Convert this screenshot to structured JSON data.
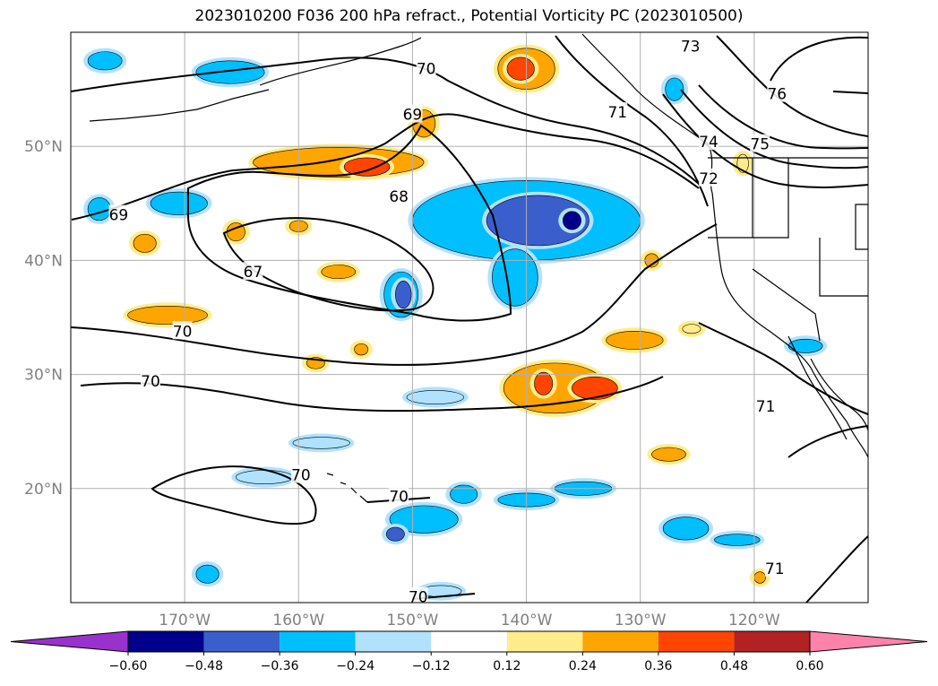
{
  "title": "2023010200 F036 200 hPa refract., Potential Vorticity PC (2023010500)",
  "map": {
    "lon_ticks": [
      {
        "lon": -170,
        "label": "170°W"
      },
      {
        "lon": -160,
        "label": "160°W"
      },
      {
        "lon": -150,
        "label": "150°W"
      },
      {
        "lon": -140,
        "label": "140°W"
      },
      {
        "lon": -130,
        "label": "130°W"
      },
      {
        "lon": -120,
        "label": "120°W"
      }
    ],
    "lat_ticks": [
      {
        "lat": 50,
        "label": "50°N"
      },
      {
        "lat": 40,
        "label": "40°N"
      },
      {
        "lat": 30,
        "label": "30°N"
      },
      {
        "lat": 20,
        "label": "20°N"
      }
    ],
    "contour_labels": [
      {
        "text": "73",
        "lon": -125.6,
        "lat": 58.8
      },
      {
        "text": "76",
        "lon": -118.0,
        "lat": 54.6
      },
      {
        "text": "70",
        "lon": -148.8,
        "lat": 56.8
      },
      {
        "text": "71",
        "lon": -132.0,
        "lat": 53.0
      },
      {
        "text": "69",
        "lon": -150.0,
        "lat": 52.8
      },
      {
        "text": "74",
        "lon": -124.0,
        "lat": 50.4
      },
      {
        "text": "75",
        "lon": -119.5,
        "lat": 50.2
      },
      {
        "text": "72",
        "lon": -124.0,
        "lat": 47.2
      },
      {
        "text": "68",
        "lon": -151.2,
        "lat": 45.6
      },
      {
        "text": "69",
        "lon": -175.8,
        "lat": 44.0
      },
      {
        "text": "67",
        "lon": -164.0,
        "lat": 39.0
      },
      {
        "text": "70",
        "lon": -170.2,
        "lat": 33.8
      },
      {
        "text": "70",
        "lon": -173.0,
        "lat": 29.4
      },
      {
        "text": "71",
        "lon": -119.0,
        "lat": 27.2
      },
      {
        "text": "70",
        "lon": -159.8,
        "lat": 21.2
      },
      {
        "text": "70",
        "lon": -151.2,
        "lat": 19.3
      },
      {
        "text": "71",
        "lon": -118.2,
        "lat": 13.0
      },
      {
        "text": "70",
        "lon": -149.5,
        "lat": 10.5
      }
    ]
  },
  "colorbar": {
    "colors": [
      "#9932cc",
      "#00008b",
      "#3a5fcd",
      "#00bfff",
      "#b0e2ff",
      "#ffffff",
      "#ffec8b",
      "#ffa500",
      "#ff4500",
      "#b22222",
      "#ff82ab"
    ],
    "ticks": [
      "−0.60",
      "−0.48",
      "−0.36",
      "−0.24",
      "−0.12",
      "0.12",
      "0.24",
      "0.36",
      "0.48",
      "0.60"
    ]
  },
  "features": {
    "blue_blobs": [
      {
        "lon": -140.0,
        "lat": 43.5,
        "rx": 10,
        "ry": 3.5,
        "level": 3
      },
      {
        "lon": -139.0,
        "lat": 43.5,
        "rx": 4.5,
        "ry": 2.2,
        "level": 2
      },
      {
        "lon": -136.0,
        "lat": 43.5,
        "rx": 0.8,
        "ry": 0.8,
        "level": 1
      },
      {
        "lon": -141.0,
        "lat": 38.5,
        "rx": 2.0,
        "ry": 2.5,
        "level": 3
      },
      {
        "lon": -151.0,
        "lat": 37.0,
        "rx": 1.5,
        "ry": 2.0,
        "level": 3
      },
      {
        "lon": -150.8,
        "lat": 37.0,
        "rx": 0.7,
        "ry": 1.2,
        "level": 2
      },
      {
        "lon": -170.5,
        "lat": 45.0,
        "rx": 2.5,
        "ry": 1.0,
        "level": 3
      },
      {
        "lon": -177.5,
        "lat": 44.5,
        "rx": 1.0,
        "ry": 1.0,
        "level": 3
      },
      {
        "lon": -166.0,
        "lat": 56.5,
        "rx": 3.0,
        "ry": 1.0,
        "level": 3
      },
      {
        "lon": -149.0,
        "lat": 17.3,
        "rx": 3.0,
        "ry": 1.2,
        "level": 3
      },
      {
        "lon": -151.5,
        "lat": 16.0,
        "rx": 0.8,
        "ry": 0.6,
        "level": 2
      },
      {
        "lon": -135.0,
        "lat": 20.0,
        "rx": 2.5,
        "ry": 0.6,
        "level": 3
      },
      {
        "lon": -140.0,
        "lat": 19.0,
        "rx": 2.5,
        "ry": 0.6,
        "level": 3
      },
      {
        "lon": -145.5,
        "lat": 19.5,
        "rx": 1.2,
        "ry": 0.8,
        "level": 3
      },
      {
        "lon": -126.0,
        "lat": 16.5,
        "rx": 2.0,
        "ry": 1.0,
        "level": 3
      },
      {
        "lon": -121.5,
        "lat": 15.5,
        "rx": 2.0,
        "ry": 0.5,
        "level": 3
      },
      {
        "lon": -158.0,
        "lat": 24.0,
        "rx": 2.5,
        "ry": 0.5,
        "level": 4
      },
      {
        "lon": -163.0,
        "lat": 21.0,
        "rx": 2.5,
        "ry": 0.6,
        "level": 4
      },
      {
        "lon": -148.0,
        "lat": 28.0,
        "rx": 2.5,
        "ry": 0.6,
        "level": 4
      },
      {
        "lon": -115.5,
        "lat": 32.5,
        "rx": 1.5,
        "ry": 0.6,
        "level": 3
      },
      {
        "lon": -147.5,
        "lat": 11.0,
        "rx": 1.8,
        "ry": 0.5,
        "level": 4
      },
      {
        "lon": -168.0,
        "lat": 12.5,
        "rx": 1.0,
        "ry": 0.8,
        "level": 3
      },
      {
        "lon": -177.0,
        "lat": 57.5,
        "rx": 1.5,
        "ry": 0.8,
        "level": 3
      },
      {
        "lon": -127.0,
        "lat": 55.0,
        "rx": 0.8,
        "ry": 1.0,
        "level": 3
      }
    ],
    "warm_blobs": [
      {
        "lon": -137.5,
        "lat": 28.8,
        "rx": 4.5,
        "ry": 2.2,
        "level": 2
      },
      {
        "lon": -134.0,
        "lat": 28.8,
        "rx": 2.0,
        "ry": 1.0,
        "level": 3
      },
      {
        "lon": -138.5,
        "lat": 29.2,
        "rx": 0.8,
        "ry": 1.0,
        "level": 3
      },
      {
        "lon": -130.5,
        "lat": 33.0,
        "rx": 2.5,
        "ry": 0.8,
        "level": 2
      },
      {
        "lon": -156.5,
        "lat": 48.6,
        "rx": 7.5,
        "ry": 1.3,
        "level": 2
      },
      {
        "lon": -154.0,
        "lat": 48.2,
        "rx": 2.0,
        "ry": 0.8,
        "level": 3
      },
      {
        "lon": -140.0,
        "lat": 56.8,
        "rx": 2.5,
        "ry": 1.8,
        "level": 2
      },
      {
        "lon": -140.5,
        "lat": 56.8,
        "rx": 1.2,
        "ry": 1.0,
        "level": 3
      },
      {
        "lon": -149.0,
        "lat": 52.0,
        "rx": 1.0,
        "ry": 1.2,
        "level": 2
      },
      {
        "lon": -171.5,
        "lat": 35.2,
        "rx": 3.5,
        "ry": 0.8,
        "level": 2
      },
      {
        "lon": -156.5,
        "lat": 39.0,
        "rx": 1.5,
        "ry": 0.6,
        "level": 2
      },
      {
        "lon": -165.5,
        "lat": 42.5,
        "rx": 0.8,
        "ry": 0.8,
        "level": 2
      },
      {
        "lon": -173.5,
        "lat": 41.5,
        "rx": 1.0,
        "ry": 0.8,
        "level": 2
      },
      {
        "lon": -160.0,
        "lat": 43.0,
        "rx": 0.8,
        "ry": 0.5,
        "level": 2
      },
      {
        "lon": -127.5,
        "lat": 23.0,
        "rx": 1.5,
        "ry": 0.6,
        "level": 2
      },
      {
        "lon": -129.0,
        "lat": 40.0,
        "rx": 0.6,
        "ry": 0.6,
        "level": 2
      },
      {
        "lon": -158.5,
        "lat": 31.0,
        "rx": 0.8,
        "ry": 0.5,
        "level": 2
      },
      {
        "lon": -154.5,
        "lat": 32.2,
        "rx": 0.6,
        "ry": 0.5,
        "level": 2
      },
      {
        "lon": -125.5,
        "lat": 34.0,
        "rx": 0.8,
        "ry": 0.4,
        "level": 1
      },
      {
        "lon": -121.0,
        "lat": 48.5,
        "rx": 0.5,
        "ry": 0.8,
        "level": 1
      },
      {
        "lon": -119.5,
        "lat": 12.2,
        "rx": 0.5,
        "ry": 0.5,
        "level": 2
      }
    ]
  }
}
